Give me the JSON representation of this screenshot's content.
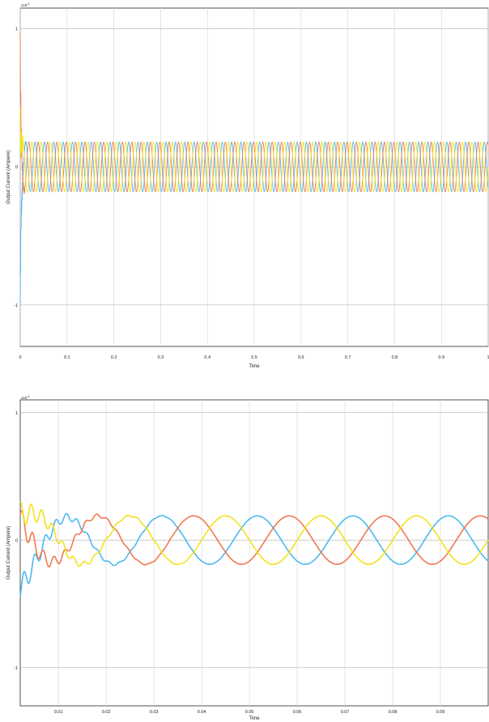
{
  "chart_data": [
    {
      "type": "line",
      "title": "",
      "xlabel": "Time",
      "ylabel": "Output Current (Ampere)",
      "y_exponent_label": "x10",
      "y_exponent_power": "-4",
      "xlim": [
        0,
        1
      ],
      "ylim": [
        -1.3,
        1.15
      ],
      "x_ticks": [
        0,
        0.1,
        0.2,
        0.3,
        0.4,
        0.5,
        0.6,
        0.7,
        0.8,
        0.9,
        1
      ],
      "x_tick_labels": [
        "0",
        "0.1",
        "0.2",
        "0.3",
        "0.4",
        "0.5",
        "0.6",
        "0.7",
        "0.8",
        "0.9",
        "1"
      ],
      "y_ticks": [
        -1,
        0,
        1
      ],
      "y_tick_labels": [
        "-1",
        "0",
        "1"
      ],
      "grid": true,
      "series": [
        {
          "color": "#4db8f0",
          "amplitude": 0.18,
          "frequency_hz": 50,
          "phase_deg": -120,
          "transient_peak": -1.0
        },
        {
          "color": "#f07850",
          "amplitude": 0.18,
          "frequency_hz": 50,
          "phase_deg": 120,
          "transient_peak": 0.85
        },
        {
          "color": "#f2e21a",
          "amplitude": 0.18,
          "frequency_hz": 50,
          "phase_deg": 0,
          "transient_peak": 0.3
        }
      ]
    },
    {
      "type": "line",
      "title": "",
      "xlabel": "Time",
      "ylabel": "Output Current (Ampere)",
      "y_exponent_label": "x10",
      "y_exponent_power": "-4",
      "xlim": [
        0.002,
        0.1
      ],
      "ylim": [
        -1.3,
        1.1
      ],
      "x_ticks": [
        0.01,
        0.02,
        0.03,
        0.04,
        0.05,
        0.06,
        0.07,
        0.08,
        0.09
      ],
      "x_tick_labels": [
        "0.01",
        "0.02",
        "0.03",
        "0.04",
        "0.05",
        "0.06",
        "0.07",
        "0.08",
        "0.09"
      ],
      "y_ticks": [
        -1,
        0,
        1
      ],
      "y_tick_labels": [
        "-1",
        "0",
        "1"
      ],
      "grid": true,
      "series": [
        {
          "color": "#4db8f0",
          "amplitude": 0.19,
          "frequency_hz": 50,
          "phase_deg": -120,
          "transient_peak": -0.6
        },
        {
          "color": "#f07850",
          "amplitude": 0.19,
          "frequency_hz": 50,
          "phase_deg": 120,
          "transient_peak": 0.25
        },
        {
          "color": "#f2e21a",
          "amplitude": 0.19,
          "frequency_hz": 50,
          "phase_deg": 0,
          "transient_peak": 0.3
        }
      ]
    }
  ]
}
